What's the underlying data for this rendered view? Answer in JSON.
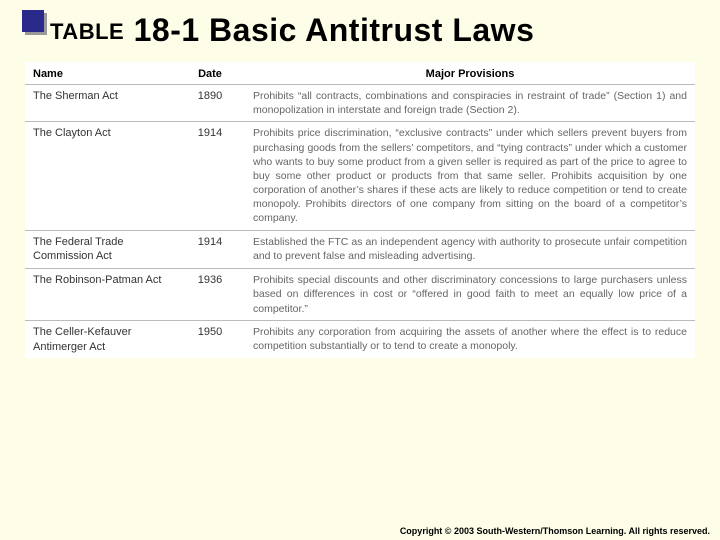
{
  "title": {
    "label": "TABLE",
    "number": "18-1",
    "text": "Basic Antitrust Laws"
  },
  "columns": {
    "name": "Name",
    "date": "Date",
    "provisions": "Major Provisions"
  },
  "rows": [
    {
      "name": "The Sherman Act",
      "date": "1890",
      "prov": "Prohibits “all contracts, combinations and conspiracies in restraint of trade” (Section 1) and monopolization in interstate and foreign trade (Section 2)."
    },
    {
      "name": "The Clayton Act",
      "date": "1914",
      "prov": "Prohibits price discrimination, “exclusive contracts” under which sellers prevent buyers from purchasing goods from the sellers’ competitors, and “tying contracts” under which a customer who wants to buy some product from a given seller is required as part of the price to agree to buy some other product or products from that same seller. Prohibits acquisition by one corporation of another’s shares if these acts are likely to reduce competition or tend to create monopoly. Prohibits directors of one company from sitting on the board of a competitor’s company."
    },
    {
      "name": "The Federal Trade Commission Act",
      "date": "1914",
      "prov": "Established the FTC as an independent agency with authority to prosecute unfair competition and to prevent false and misleading advertising."
    },
    {
      "name": "The Robinson-Patman Act",
      "date": "1936",
      "prov": "Prohibits special discounts and other discriminatory concessions to large purchasers unless based on differences in cost or “offered in good faith to meet an equally low price of a competitor.”"
    },
    {
      "name": "The Celler-Kefauver Antimerger Act",
      "date": "1950",
      "prov": "Prohibits any corporation from acquiring the assets of another where the effect is to reduce competition substantially or to tend to create a monopoly."
    }
  ],
  "footer": "Copyright © 2003 South-Western/Thomson Learning. All rights reserved."
}
